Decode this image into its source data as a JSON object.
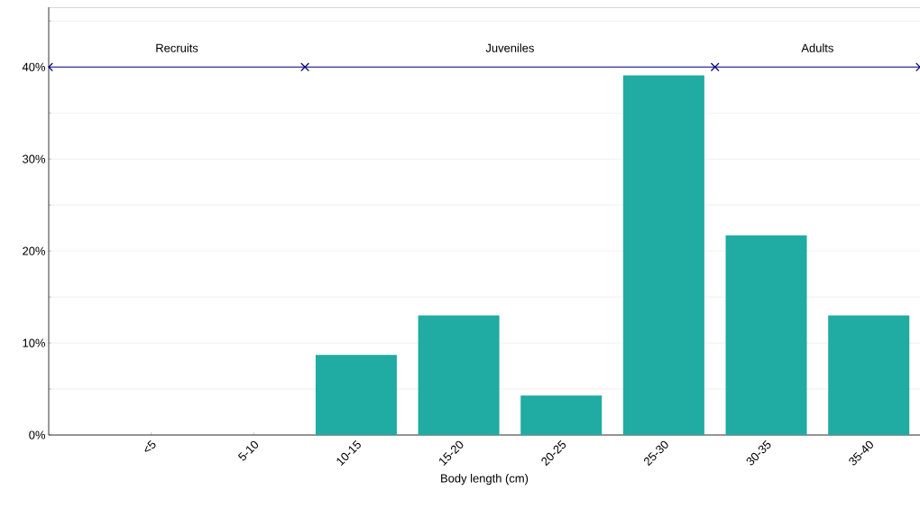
{
  "chart_data": {
    "type": "bar",
    "xlabel": "Body length (cm)",
    "categories": [
      "<5",
      "5-10",
      "10-15",
      "15-20",
      "20-25",
      "25-30",
      "30-35",
      "35-40"
    ],
    "values": [
      0,
      0,
      8.7,
      13.0,
      4.3,
      39.1,
      21.7,
      13.0
    ],
    "color": "#20aba3",
    "ylim": [
      0,
      46.5
    ],
    "yticks": [
      {
        "value": 0,
        "label": "0%"
      },
      {
        "value": 5,
        "label": null
      },
      {
        "value": 10,
        "label": "10%"
      },
      {
        "value": 15,
        "label": null
      },
      {
        "value": 20,
        "label": "20%"
      },
      {
        "value": 25,
        "label": null
      },
      {
        "value": 30,
        "label": "30%"
      },
      {
        "value": 35,
        "label": null
      },
      {
        "value": 40,
        "label": "40%"
      },
      {
        "value": 45,
        "label": null
      }
    ],
    "grid": "y",
    "ref_lines": [
      {
        "axis": "y",
        "value": 40,
        "color": "#000080"
      }
    ],
    "annotations": [
      "Recruits",
      "Juveniles",
      "Adults"
    ]
  }
}
